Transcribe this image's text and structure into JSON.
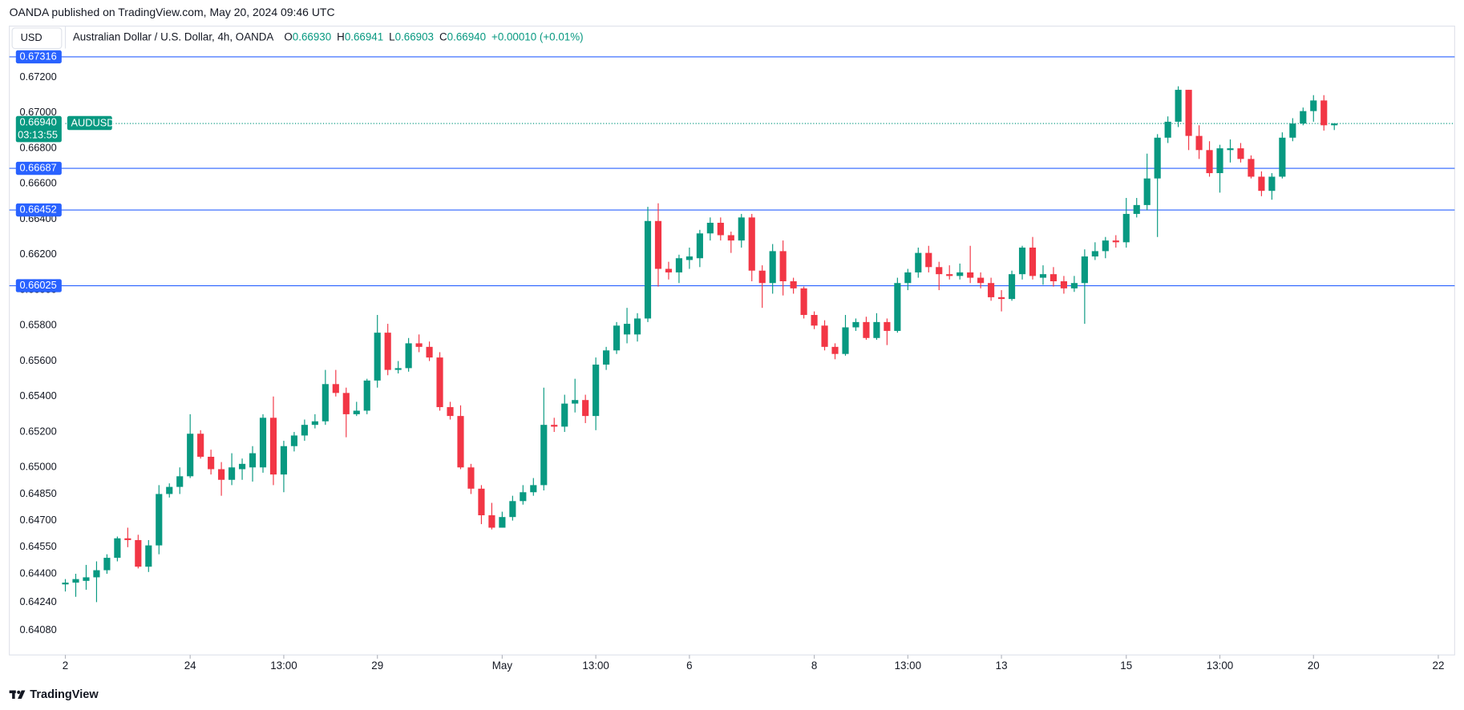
{
  "publisher": "OANDA published on TradingView.com, May 20, 2024 09:46 UTC",
  "currency": "USD",
  "legend": {
    "name": "Australian Dollar / U.S. Dollar, 4h, OANDA",
    "items": [
      {
        "key": "O",
        "value": "0.66930"
      },
      {
        "key": "H",
        "value": "0.66941"
      },
      {
        "key": "L",
        "value": "0.66903"
      },
      {
        "key": "C",
        "value": "0.66940"
      }
    ],
    "change": "+0.00010 (+0.01%)"
  },
  "footer": "TradingView",
  "chart_data": {
    "type": "candlestick",
    "up_color": "#089981",
    "down_color": "#f23645",
    "level_color": "#2962ff",
    "xlim": [
      -5.4,
      134
    ],
    "xticks": [
      {
        "value": 0,
        "label": "2"
      },
      {
        "value": 12,
        "label": "24"
      },
      {
        "value": 21,
        "label": "13:00"
      },
      {
        "value": 30,
        "label": "29"
      },
      {
        "value": 42,
        "label": "May"
      },
      {
        "value": 51,
        "label": "13:00"
      },
      {
        "value": 60,
        "label": "6"
      },
      {
        "value": 72,
        "label": "8"
      },
      {
        "value": 81,
        "label": "13:00"
      },
      {
        "value": 90,
        "label": "13"
      },
      {
        "value": 102,
        "label": "15"
      },
      {
        "value": 111,
        "label": "13:00"
      },
      {
        "value": 120,
        "label": "20"
      },
      {
        "value": 132,
        "label": "22"
      }
    ],
    "ylim": [
      0.63942,
      0.67363
    ],
    "yticks": [
      {
        "value": 0.6408,
        "label": "0.64080"
      },
      {
        "value": 0.6424,
        "label": "0.64240"
      },
      {
        "value": 0.644,
        "label": "0.64400"
      },
      {
        "value": 0.6455,
        "label": "0.64550"
      },
      {
        "value": 0.647,
        "label": "0.64700"
      },
      {
        "value": 0.6485,
        "label": "0.64850"
      },
      {
        "value": 0.65,
        "label": "0.65000"
      },
      {
        "value": 0.652,
        "label": "0.65200"
      },
      {
        "value": 0.654,
        "label": "0.65400"
      },
      {
        "value": 0.656,
        "label": "0.65600"
      },
      {
        "value": 0.658,
        "label": "0.65800"
      },
      {
        "value": 0.66,
        "label": "0.66000"
      },
      {
        "value": 0.662,
        "label": "0.66200"
      },
      {
        "value": 0.664,
        "label": "0.66400"
      },
      {
        "value": 0.666,
        "label": "0.66600"
      },
      {
        "value": 0.668,
        "label": "0.66800"
      },
      {
        "value": 0.67,
        "label": "0.67000"
      },
      {
        "value": 0.672,
        "label": "0.67200"
      }
    ],
    "levels": [
      0.67316,
      0.66687,
      0.66452,
      0.66025
    ],
    "last_price": {
      "value": 0.6694,
      "label": "0.66940"
    },
    "countdown": "03:13:55",
    "symbol": "AUDUSD",
    "open": [
      0.6434,
      0.6435,
      0.6436,
      0.6438,
      0.6442,
      0.6449,
      0.646,
      0.6459,
      0.6444,
      0.6456,
      0.6485,
      0.6489,
      0.6495,
      0.6519,
      0.6506,
      0.6499,
      0.6493,
      0.6499,
      0.65,
      0.65,
      0.6528,
      0.6496,
      0.6512,
      0.6518,
      0.6524,
      0.6526,
      0.6547,
      0.6542,
      0.653,
      0.6532,
      0.6549,
      0.6576,
      0.6555,
      0.6556,
      0.657,
      0.6568,
      0.6562,
      0.6534,
      0.6529,
      0.65,
      0.6488,
      0.6473,
      0.6466,
      0.6472,
      0.6481,
      0.6486,
      0.649,
      0.6524,
      0.6523,
      0.6536,
      0.6538,
      0.6529,
      0.6558,
      0.6566,
      0.6575,
      0.6575,
      0.6584,
      0.6639,
      0.6612,
      0.661,
      0.6617,
      0.6618,
      0.6632,
      0.6638,
      0.6631,
      0.6628,
      0.6641,
      0.6611,
      0.6604,
      0.6622,
      0.6605,
      0.6601,
      0.6586,
      0.658,
      0.6568,
      0.6564,
      0.6579,
      0.6582,
      0.6573,
      0.6582,
      0.6577,
      0.6604,
      0.661,
      0.6621,
      0.6613,
      0.6609,
      0.6608,
      0.661,
      0.6607,
      0.6604,
      0.6596,
      0.6595,
      0.6609,
      0.6624,
      0.6607,
      0.6609,
      0.6605,
      0.6601,
      0.6604,
      0.6619,
      0.6622,
      0.6628,
      0.6627,
      0.6643,
      0.6648,
      0.6663,
      0.6686,
      0.6695,
      0.6713,
      0.6687,
      0.6679,
      0.6666,
      0.6679,
      0.668,
      0.6674,
      0.6664,
      0.6656,
      0.6664,
      0.6686,
      0.6694,
      0.6701,
      0.6707,
      0.6693
    ],
    "high": [
      0.6437,
      0.644,
      0.6445,
      0.6447,
      0.6451,
      0.6461,
      0.6466,
      0.6462,
      0.6459,
      0.649,
      0.6491,
      0.65,
      0.653,
      0.6521,
      0.651,
      0.6503,
      0.6508,
      0.6505,
      0.6512,
      0.653,
      0.654,
      0.6515,
      0.652,
      0.6527,
      0.653,
      0.6555,
      0.6555,
      0.6545,
      0.6537,
      0.655,
      0.6586,
      0.6581,
      0.656,
      0.6573,
      0.6575,
      0.6571,
      0.6565,
      0.6537,
      0.6535,
      0.6502,
      0.649,
      0.648,
      0.6475,
      0.6484,
      0.649,
      0.6494,
      0.6545,
      0.6528,
      0.6541,
      0.655,
      0.6541,
      0.6562,
      0.6568,
      0.6582,
      0.659,
      0.6587,
      0.6647,
      0.6649,
      0.6616,
      0.662,
      0.6624,
      0.6634,
      0.6641,
      0.6641,
      0.6633,
      0.6643,
      0.6643,
      0.6614,
      0.6626,
      0.6628,
      0.6607,
      0.6602,
      0.6588,
      0.6583,
      0.657,
      0.6586,
      0.6584,
      0.6585,
      0.6587,
      0.6584,
      0.6607,
      0.6612,
      0.6624,
      0.6625,
      0.6616,
      0.6614,
      0.6615,
      0.6625,
      0.661,
      0.6607,
      0.66,
      0.6611,
      0.6625,
      0.663,
      0.6614,
      0.6613,
      0.6608,
      0.6608,
      0.6623,
      0.6627,
      0.663,
      0.6631,
      0.6652,
      0.6652,
      0.6677,
      0.6688,
      0.6698,
      0.6715,
      0.6713,
      0.6693,
      0.6684,
      0.6682,
      0.6685,
      0.6683,
      0.6676,
      0.6667,
      0.6666,
      0.6689,
      0.6697,
      0.6703,
      0.671,
      0.671,
      0.66941
    ],
    "low": [
      0.643,
      0.6427,
      0.6431,
      0.6424,
      0.644,
      0.6447,
      0.6455,
      0.6443,
      0.6441,
      0.6451,
      0.6483,
      0.6485,
      0.6494,
      0.6505,
      0.6496,
      0.6484,
      0.649,
      0.6493,
      0.6492,
      0.6497,
      0.649,
      0.6486,
      0.6509,
      0.6515,
      0.6522,
      0.6524,
      0.654,
      0.6517,
      0.6529,
      0.653,
      0.6545,
      0.6552,
      0.6553,
      0.6554,
      0.6565,
      0.656,
      0.6532,
      0.6527,
      0.6499,
      0.6485,
      0.6468,
      0.6465,
      0.6466,
      0.647,
      0.6479,
      0.6484,
      0.6487,
      0.652,
      0.652,
      0.6531,
      0.6525,
      0.6521,
      0.6555,
      0.6564,
      0.657,
      0.6571,
      0.6582,
      0.6602,
      0.6606,
      0.6604,
      0.6612,
      0.6613,
      0.6628,
      0.6628,
      0.6621,
      0.6624,
      0.6605,
      0.659,
      0.6598,
      0.6597,
      0.6598,
      0.6584,
      0.6578,
      0.6566,
      0.6561,
      0.6563,
      0.6577,
      0.6572,
      0.6572,
      0.6569,
      0.6576,
      0.66,
      0.6607,
      0.661,
      0.66,
      0.6606,
      0.6606,
      0.6604,
      0.6601,
      0.6594,
      0.6588,
      0.6594,
      0.6606,
      0.6606,
      0.6603,
      0.6602,
      0.6598,
      0.6599,
      0.6581,
      0.6617,
      0.6618,
      0.6624,
      0.6624,
      0.6641,
      0.6645,
      0.663,
      0.6683,
      0.6692,
      0.6679,
      0.6674,
      0.6664,
      0.6655,
      0.6672,
      0.6672,
      0.6663,
      0.6653,
      0.6651,
      0.6663,
      0.6684,
      0.6693,
      0.6695,
      0.669,
      0.66903
    ],
    "close": [
      0.6435,
      0.6437,
      0.6438,
      0.6442,
      0.6449,
      0.646,
      0.6459,
      0.6444,
      0.6456,
      0.6485,
      0.6489,
      0.6495,
      0.6519,
      0.6506,
      0.6499,
      0.6493,
      0.65,
      0.6502,
      0.6508,
      0.6528,
      0.6496,
      0.6512,
      0.6518,
      0.6524,
      0.6526,
      0.6547,
      0.6542,
      0.653,
      0.6532,
      0.6549,
      0.6576,
      0.6555,
      0.6556,
      0.657,
      0.6568,
      0.6562,
      0.6534,
      0.6529,
      0.65,
      0.6488,
      0.6473,
      0.6466,
      0.6472,
      0.6481,
      0.6486,
      0.649,
      0.6524,
      0.6523,
      0.6536,
      0.6538,
      0.6529,
      0.6558,
      0.6566,
      0.658,
      0.6581,
      0.6584,
      0.6639,
      0.6612,
      0.661,
      0.6618,
      0.6619,
      0.6632,
      0.6638,
      0.6631,
      0.6628,
      0.6641,
      0.6611,
      0.6604,
      0.6622,
      0.6605,
      0.6601,
      0.6586,
      0.658,
      0.6568,
      0.6564,
      0.6579,
      0.6582,
      0.6573,
      0.6582,
      0.6577,
      0.6604,
      0.661,
      0.6621,
      0.6613,
      0.6609,
      0.6608,
      0.661,
      0.6607,
      0.6604,
      0.6596,
      0.6595,
      0.6609,
      0.6624,
      0.6608,
      0.6609,
      0.6605,
      0.6601,
      0.6604,
      0.6619,
      0.6622,
      0.6628,
      0.6627,
      0.6643,
      0.6648,
      0.6663,
      0.6686,
      0.6695,
      0.6713,
      0.6687,
      0.6679,
      0.6666,
      0.668,
      0.668,
      0.6674,
      0.6664,
      0.6656,
      0.6664,
      0.6686,
      0.6694,
      0.6701,
      0.6707,
      0.6693,
      0.6694
    ]
  }
}
